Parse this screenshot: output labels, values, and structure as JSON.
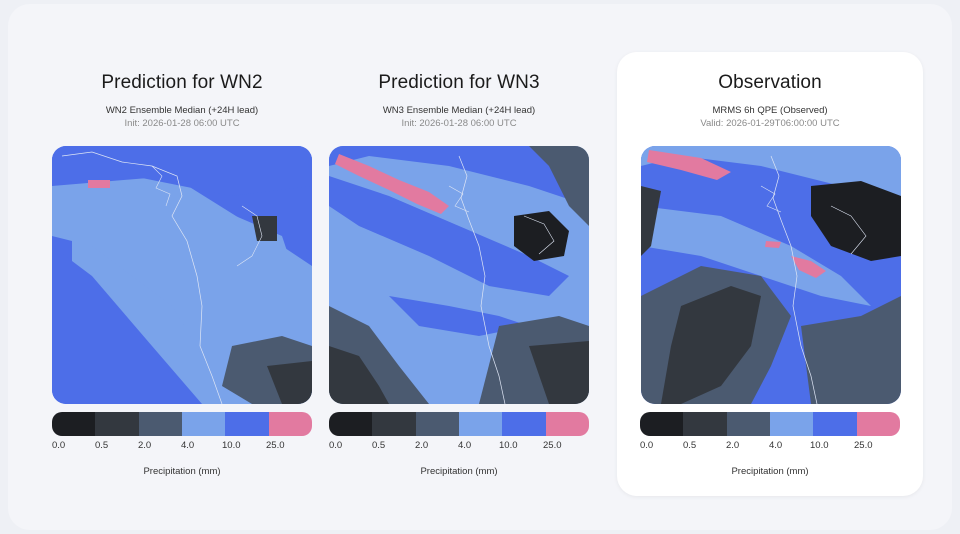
{
  "colors": {
    "bins": [
      "#1c1e22",
      "#33383f",
      "#4b5a70",
      "#7aa3ea",
      "#4d6ee8",
      "#e27aa0"
    ],
    "coast": "#dfe6f5"
  },
  "colorbar": {
    "ticks": [
      "0.0",
      "0.5",
      "2.0",
      "4.0",
      "10.0",
      "25.0"
    ],
    "label": "Precipitation (mm)"
  },
  "panels": [
    {
      "title": "Prediction for WN2",
      "subtitle": "WN2 Ensemble Median (+24H lead)",
      "init": "Init: 2026-01-28 06:00 UTC",
      "highlighted": false
    },
    {
      "title": "Prediction for WN3",
      "subtitle": "WN3 Ensemble Median (+24H lead)",
      "init": "Init: 2026-01-28 06:00 UTC",
      "highlighted": false
    },
    {
      "title": "Observation",
      "subtitle": "MRMS 6h QPE (Observed)",
      "init": "Valid: 2026-01-29T06:00:00 UTC",
      "highlighted": true
    }
  ]
}
